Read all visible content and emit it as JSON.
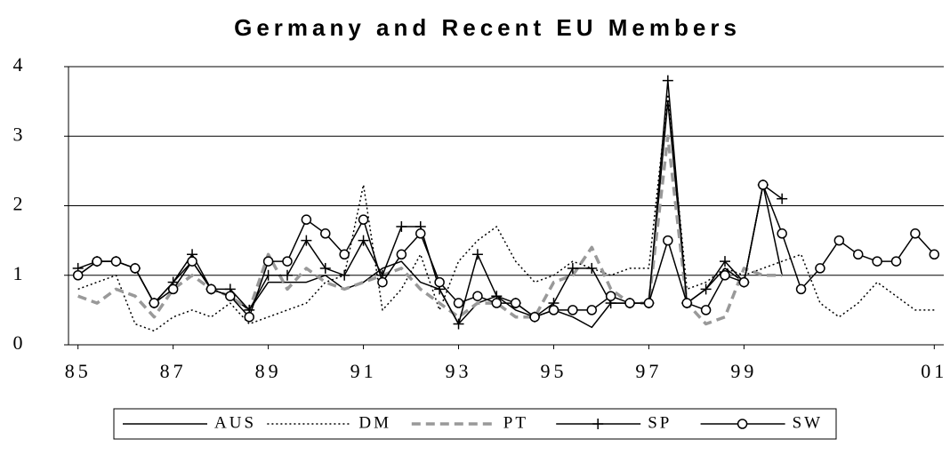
{
  "chart_data": {
    "type": "line",
    "title": "Germany and Recent EU Members",
    "categories": [
      "85",
      null,
      null,
      null,
      null,
      "87",
      null,
      null,
      null,
      null,
      "89",
      null,
      null,
      null,
      null,
      "91",
      null,
      null,
      null,
      null,
      "93",
      null,
      null,
      null,
      null,
      "95",
      null,
      null,
      null,
      null,
      "97",
      null,
      null,
      null,
      null,
      "99",
      null,
      null,
      null,
      null,
      null,
      null,
      null,
      null,
      null,
      "01"
    ],
    "ylim": [
      0,
      4
    ],
    "yticks": [
      0,
      1,
      2,
      3,
      4
    ],
    "grid": true,
    "legend": "bottom",
    "series": [
      {
        "name": "AUS",
        "color": "#000000",
        "style": "solid",
        "marker": null,
        "values": [
          1.0,
          1.2,
          1.2,
          1.1,
          0.6,
          0.9,
          1.2,
          0.8,
          0.7,
          0.5,
          0.9,
          0.9,
          0.9,
          1.0,
          0.8,
          0.9,
          1.1,
          1.2,
          0.9,
          0.8,
          0.3,
          0.6,
          0.7,
          0.5,
          0.4,
          0.5,
          0.4,
          0.25,
          0.6,
          0.6,
          0.6,
          3.5,
          0.6,
          0.8,
          1.1,
          0.9,
          2.3,
          1.0,
          null,
          null,
          null,
          null,
          null,
          null,
          null,
          null
        ]
      },
      {
        "name": "DM",
        "color": "#000000",
        "style": "dotted",
        "marker": null,
        "values": [
          0.8,
          0.9,
          1.0,
          0.3,
          0.2,
          0.4,
          0.5,
          0.4,
          0.6,
          0.3,
          0.4,
          0.5,
          0.6,
          0.9,
          1.0,
          2.3,
          0.5,
          0.8,
          1.3,
          0.5,
          1.2,
          1.5,
          1.7,
          1.2,
          0.9,
          1.0,
          1.2,
          1.1,
          1.0,
          1.1,
          1.1,
          3.6,
          0.8,
          0.9,
          1.1,
          1.0,
          1.1,
          1.2,
          1.3,
          0.6,
          0.4,
          0.6,
          0.9,
          0.7,
          0.5,
          0.5
        ]
      },
      {
        "name": "PT",
        "color": "#999999",
        "style": "dashed",
        "marker": null,
        "values": [
          0.7,
          0.6,
          0.8,
          0.7,
          0.4,
          0.8,
          1.0,
          0.8,
          0.7,
          0.5,
          1.3,
          0.8,
          1.1,
          0.9,
          0.8,
          0.9,
          1.0,
          1.1,
          0.8,
          0.6,
          0.4,
          0.6,
          0.6,
          0.4,
          0.4,
          0.9,
          1.0,
          1.4,
          0.8,
          0.6,
          0.6,
          3.0,
          0.6,
          0.3,
          0.4,
          1.1,
          1.0,
          1.0,
          null,
          null,
          null,
          null,
          null,
          null,
          null,
          null
        ]
      },
      {
        "name": "SP",
        "color": "#000000",
        "style": "solid",
        "marker": "plus",
        "values": [
          1.1,
          1.2,
          1.2,
          1.1,
          0.6,
          0.9,
          1.3,
          0.8,
          0.8,
          0.5,
          1.0,
          1.0,
          1.5,
          1.1,
          1.0,
          1.5,
          1.0,
          1.7,
          1.7,
          0.8,
          0.3,
          1.3,
          0.7,
          0.6,
          0.4,
          0.6,
          1.1,
          1.1,
          0.6,
          0.6,
          0.6,
          3.8,
          0.6,
          0.8,
          1.2,
          0.9,
          2.3,
          2.1,
          null,
          null,
          null,
          null,
          null,
          null,
          null,
          null
        ]
      },
      {
        "name": "SW",
        "color": "#000000",
        "style": "solid",
        "marker": "circle",
        "values": [
          1.0,
          1.2,
          1.2,
          1.1,
          0.6,
          0.8,
          1.2,
          0.8,
          0.7,
          0.4,
          1.2,
          1.2,
          1.8,
          1.6,
          1.3,
          1.8,
          0.9,
          1.3,
          1.6,
          0.9,
          0.6,
          0.7,
          0.6,
          0.6,
          0.4,
          0.5,
          0.5,
          0.5,
          0.7,
          0.6,
          0.6,
          1.5,
          0.6,
          0.5,
          1.0,
          0.9,
          2.3,
          1.6,
          0.8,
          1.1,
          1.5,
          1.3,
          1.2,
          1.2,
          1.6,
          1.3
        ]
      }
    ]
  }
}
